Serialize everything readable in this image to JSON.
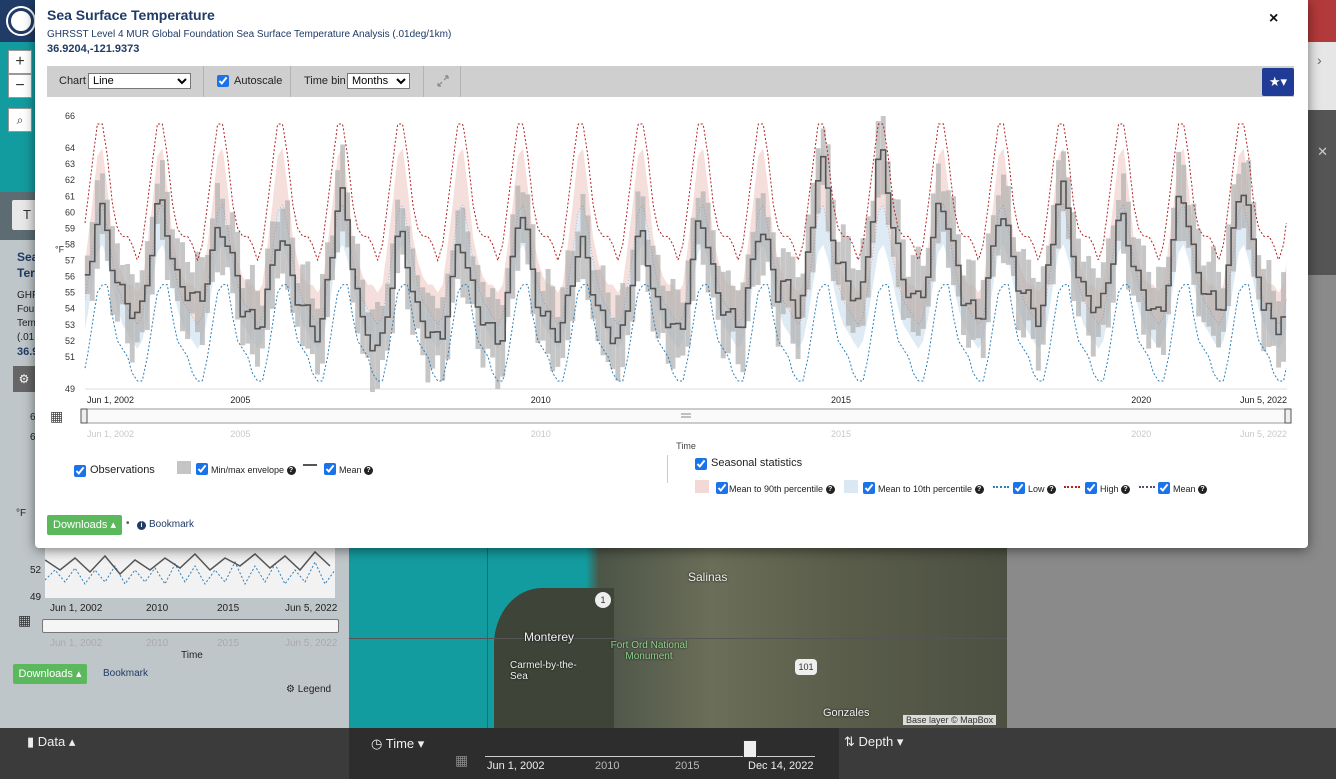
{
  "background": {
    "map_controls": {
      "zoom_in": "+",
      "zoom_out": "−"
    },
    "left_panel": {
      "tab_fragment": "T",
      "title_fragments": [
        "Sea",
        "Ter"
      ],
      "sub_fragments": [
        "GHF",
        "Fou",
        "Tem",
        "(.01",
        "36.9"
      ],
      "y_ticks": [
        "6",
        "6",
        "52",
        "49"
      ],
      "y_unit": "°F",
      "x_ticks": [
        "Jun 1, 2002",
        "2010",
        "2015",
        "Jun 5, 2022"
      ],
      "nav_ticks": [
        "Jun 1, 2002",
        "2010",
        "2015",
        "Jun 5, 2022"
      ],
      "time_label": "Time",
      "downloads_label": "Downloads ▴",
      "bookmark_label": "Bookmark",
      "legend_label": "Legend"
    },
    "map": {
      "labels": [
        "Salinas",
        "Monterey",
        "Carmel-by-the-Sea",
        "Fort Ord National Monument",
        "Gonzales"
      ],
      "road_shields": [
        "1",
        "101"
      ],
      "attribution": "Base layer © MapBox"
    },
    "bottom_bar": {
      "data_label": "Data",
      "time_label": "Time",
      "depth_label": "Depth",
      "timeline_ticks": [
        "Jun 1, 2002",
        "2010",
        "2015",
        "Dec 14, 2022"
      ]
    }
  },
  "modal": {
    "title": "Sea Surface Temperature",
    "subtitle": "GHRSST Level 4 MUR Global Foundation Sea Surface Temperature Analysis (.01deg/1km)",
    "coordinates": "36.9204,-121.9373",
    "close_icon": "×",
    "toolbar": {
      "chart_label": "Chart",
      "chart_value": "Line",
      "autoscale_label": "Autoscale",
      "autoscale_checked": true,
      "timebin_label": "Time bin",
      "timebin_value": "Months",
      "expand_icon": "expand-icon",
      "favorite_icon": "★▾"
    },
    "legend": {
      "observations_label": "Observations",
      "minmax_label": "Min/max envelope",
      "mean_label": "Mean",
      "seasonal_label": "Seasonal statistics",
      "p90_label": "Mean to 90th percentile",
      "p10_label": "Mean to 10th percentile",
      "low_label": "Low",
      "high_label": "High",
      "seasonal_mean_label": "Mean"
    },
    "downloads_label": "Downloads ▴",
    "bookmark_label": "Bookmark",
    "bullet": "•"
  },
  "chart_data": {
    "type": "line",
    "title": "",
    "xlabel": "Time",
    "ylabel": "°F",
    "ylim": [
      49,
      66
    ],
    "y_ticks": [
      49,
      51,
      52,
      53,
      54,
      55,
      56,
      57,
      58,
      59,
      60,
      61,
      62,
      63,
      64,
      66
    ],
    "x_range": [
      "2002-06-01",
      "2022-06-05"
    ],
    "x_tick_labels": [
      "Jun 1, 2002",
      "2005",
      "2010",
      "2015",
      "2020",
      "Jun 5, 2022"
    ],
    "navigator_tick_labels": [
      "Jun 1, 2002",
      "2005",
      "2010",
      "2015",
      "2020",
      "Jun 5, 2022"
    ],
    "colors": {
      "mean_line": "#555555",
      "envelope": "#b3b3b3",
      "p90_band": "#f3d9d6",
      "p10_band": "#d9e8f2",
      "low": "#2c7fb8",
      "high": "#b22222"
    },
    "seasonal_climatology": {
      "months": [
        "Jan",
        "Feb",
        "Mar",
        "Apr",
        "May",
        "Jun",
        "Jul",
        "Aug",
        "Sep",
        "Oct",
        "Nov",
        "Dec"
      ],
      "low": [
        51.5,
        51.0,
        50.0,
        49.5,
        49.5,
        51.0,
        53.0,
        55.0,
        55.5,
        55.5,
        53.5,
        52.0
      ],
      "p10": [
        53.0,
        52.5,
        52.0,
        51.5,
        52.0,
        53.5,
        55.5,
        57.5,
        58.0,
        57.0,
        55.5,
        54.0
      ],
      "mean": [
        54.5,
        54.0,
        53.5,
        53.0,
        53.5,
        55.5,
        57.5,
        60.0,
        60.5,
        59.0,
        57.0,
        55.5
      ],
      "p90": [
        56.0,
        55.5,
        55.5,
        55.0,
        55.5,
        58.0,
        60.5,
        63.5,
        64.0,
        61.5,
        58.5,
        57.0
      ],
      "high": [
        58.5,
        58.5,
        58.0,
        57.0,
        58.0,
        60.5,
        63.0,
        65.5,
        65.5,
        63.5,
        60.5,
        59.0
      ]
    },
    "series": [
      {
        "name": "Mean",
        "note": "monthly observed mean, Jun 2002 – Jun 2022",
        "annual_peaks": [
          {
            "year": 2002,
            "value": 60.0
          },
          {
            "year": 2003,
            "value": 60.5
          },
          {
            "year": 2004,
            "value": 59.0
          },
          {
            "year": 2005,
            "value": 58.5
          },
          {
            "year": 2006,
            "value": 61.0
          },
          {
            "year": 2007,
            "value": 58.5
          },
          {
            "year": 2008,
            "value": 58.0
          },
          {
            "year": 2009,
            "value": 60.0
          },
          {
            "year": 2010,
            "value": 58.0
          },
          {
            "year": 2011,
            "value": 58.5
          },
          {
            "year": 2012,
            "value": 59.5
          },
          {
            "year": 2013,
            "value": 59.0
          },
          {
            "year": 2014,
            "value": 63.0
          },
          {
            "year": 2015,
            "value": 63.5
          },
          {
            "year": 2016,
            "value": 60.5
          },
          {
            "year": 2017,
            "value": 60.0
          },
          {
            "year": 2018,
            "value": 61.5
          },
          {
            "year": 2019,
            "value": 59.5
          },
          {
            "year": 2020,
            "value": 61.0
          },
          {
            "year": 2021,
            "value": 61.5
          },
          {
            "year": 2022,
            "value": 58.5
          }
        ],
        "annual_troughs": [
          {
            "year": 2003,
            "value": 53.5
          },
          {
            "year": 2004,
            "value": 54.5
          },
          {
            "year": 2005,
            "value": 53.0
          },
          {
            "year": 2006,
            "value": 52.5
          },
          {
            "year": 2007,
            "value": 51.5
          },
          {
            "year": 2008,
            "value": 52.0
          },
          {
            "year": 2009,
            "value": 52.0
          },
          {
            "year": 2010,
            "value": 52.5
          },
          {
            "year": 2011,
            "value": 52.0
          },
          {
            "year": 2012,
            "value": 52.5
          },
          {
            "year": 2013,
            "value": 53.0
          },
          {
            "year": 2014,
            "value": 54.0
          },
          {
            "year": 2015,
            "value": 54.5
          },
          {
            "year": 2016,
            "value": 54.5
          },
          {
            "year": 2017,
            "value": 53.5
          },
          {
            "year": 2018,
            "value": 53.5
          },
          {
            "year": 2019,
            "value": 54.0
          },
          {
            "year": 2020,
            "value": 53.5
          },
          {
            "year": 2021,
            "value": 54.0
          },
          {
            "year": 2022,
            "value": 53.0
          }
        ]
      }
    ]
  }
}
